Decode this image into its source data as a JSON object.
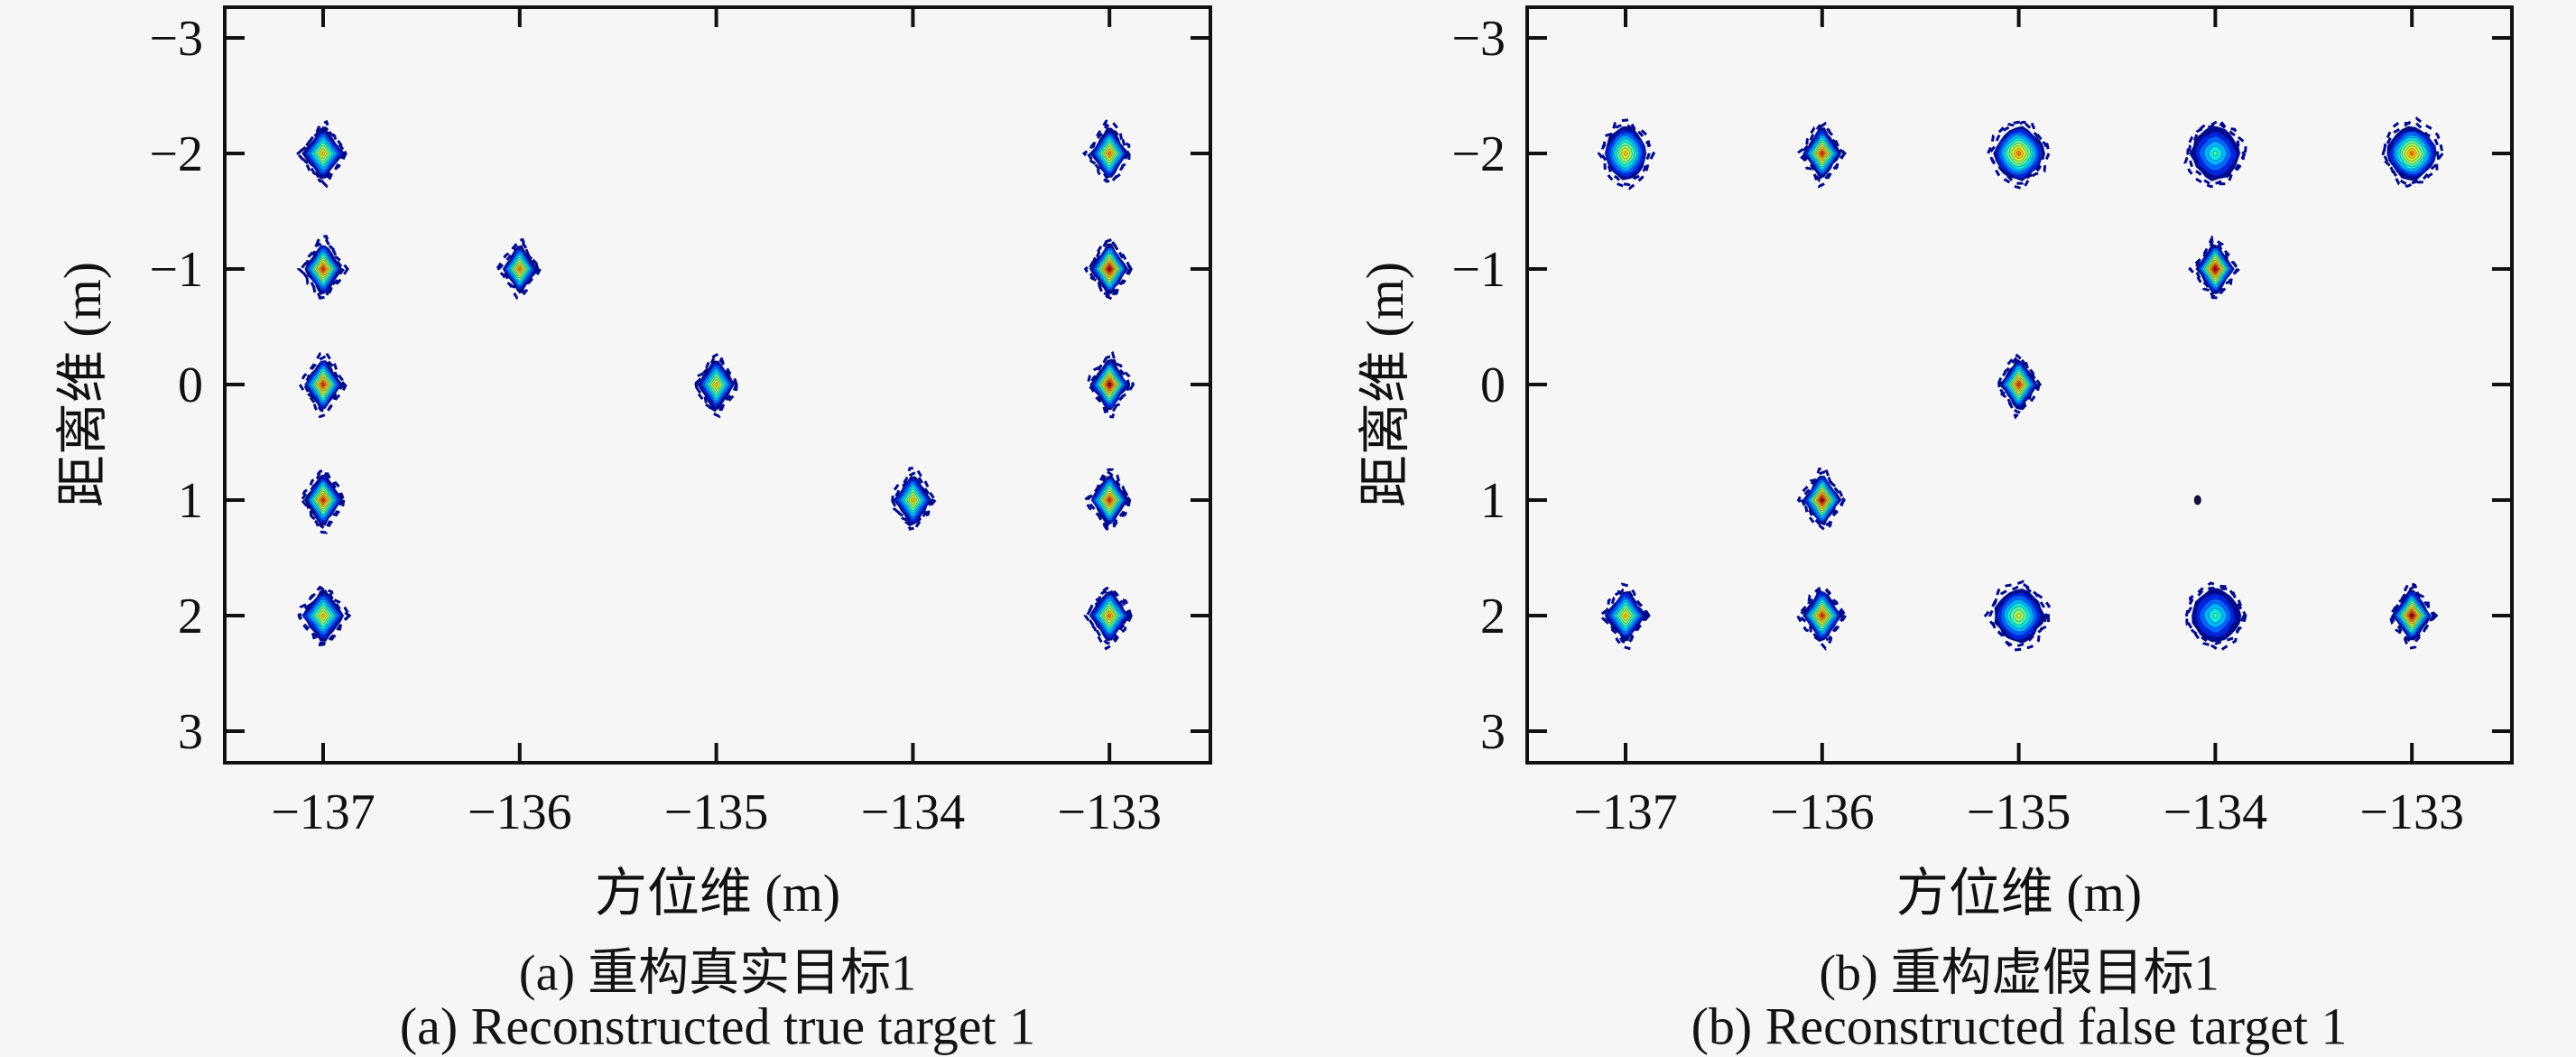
{
  "figure": {
    "background": "#f6f6f6",
    "axis_color": "#111111",
    "colormap": "jet",
    "panels": [
      {
        "index": "a",
        "xlabel": "方位维 (m)",
        "ylabel": "距离维 (m)",
        "caption_line1": "(a) 重构真实目标1",
        "caption_line2": "(a) Reconstructed true target 1"
      },
      {
        "index": "b",
        "xlabel": "方位维 (m)",
        "ylabel": "距离维 (m)",
        "caption_line1": "(b) 重构虚假目标1",
        "caption_line2": "(b) Reconstructed false target 1"
      }
    ]
  },
  "chart_data": [
    {
      "type": "scatter",
      "subtype": "filled-contour-blobs",
      "title": "(a) 重构真实目标1 / (a) Reconstructed true target 1",
      "xlabel": "方位维 (m)",
      "ylabel": "距离维 (m)",
      "xlim": [
        -137.5,
        -132.5
      ],
      "ylim": [
        -3.25,
        3.27
      ],
      "y_axis_direction": "reversed",
      "grid": false,
      "legend": "none",
      "x_tick_values": [
        -137,
        -136,
        -135,
        -134,
        -133
      ],
      "x_tick_labels": [
        "−137",
        "−136",
        "−135",
        "−134",
        "−133"
      ],
      "y_tick_values": [
        -3,
        -2,
        -1,
        0,
        1,
        2,
        3
      ],
      "y_tick_labels": [
        "−3",
        "−2",
        "−1",
        "0",
        "1",
        "2",
        "3"
      ],
      "points": [
        {
          "x": -137,
          "y": -2,
          "peak": "yellow",
          "shape": "diamond",
          "seed": 1,
          "sx": 1.1
        },
        {
          "x": -137,
          "y": -1,
          "peak": "red",
          "shape": "diamond",
          "seed": 2
        },
        {
          "x": -137,
          "y": 0,
          "peak": "red",
          "shape": "diamond",
          "seed": 3
        },
        {
          "x": -137,
          "y": 1,
          "peak": "red",
          "shape": "diamond",
          "seed": 4
        },
        {
          "x": -137,
          "y": 2,
          "peak": "yellow",
          "shape": "diamond",
          "seed": 5,
          "sx": 1.15
        },
        {
          "x": -136,
          "y": -1,
          "peak": "orange",
          "shape": "diamond",
          "seed": 6,
          "sx": 0.92,
          "sy": 0.92
        },
        {
          "x": -135,
          "y": 0,
          "peak": "yellow",
          "shape": "diamond",
          "seed": 7
        },
        {
          "x": -134,
          "y": 1,
          "peak": "yellow",
          "shape": "diamond",
          "seed": 8
        },
        {
          "x": -133,
          "y": -2,
          "peak": "orange",
          "shape": "diamond",
          "seed": 9
        },
        {
          "x": -133,
          "y": -1,
          "peak": "darkred",
          "shape": "diamond",
          "seed": 10
        },
        {
          "x": -133,
          "y": 0,
          "peak": "darkred",
          "shape": "diamond",
          "seed": 11
        },
        {
          "x": -133,
          "y": 1,
          "peak": "red",
          "shape": "diamond",
          "seed": 12
        },
        {
          "x": -133,
          "y": 2,
          "peak": "orange",
          "shape": "diamond",
          "seed": 13,
          "sx": 1.05
        }
      ]
    },
    {
      "type": "scatter",
      "subtype": "filled-contour-blobs",
      "title": "(b) 重构虚假目标1 / (b) Reconstructed false target 1",
      "xlabel": "方位维 (m)",
      "ylabel": "距离维 (m)",
      "xlim": [
        -137.5,
        -132.5
      ],
      "ylim": [
        -3.25,
        3.27
      ],
      "y_axis_direction": "reversed",
      "grid": false,
      "legend": "none",
      "x_tick_values": [
        -137,
        -136,
        -135,
        -134,
        -133
      ],
      "x_tick_labels": [
        "−137",
        "−136",
        "−135",
        "−134",
        "−133"
      ],
      "y_tick_values": [
        -3,
        -2,
        -1,
        0,
        1,
        2,
        3
      ],
      "y_tick_labels": [
        "−3",
        "−2",
        "−1",
        "0",
        "1",
        "2",
        "3"
      ],
      "points": [
        {
          "x": -137,
          "y": -2,
          "peak": "yellow",
          "shape": "hex",
          "seed": 21,
          "sx": 0.85
        },
        {
          "x": -136,
          "y": -2,
          "peak": "red",
          "shape": "diamond",
          "seed": 22
        },
        {
          "x": -135,
          "y": -2,
          "peak": "orange",
          "shape": "hex",
          "seed": 23
        },
        {
          "x": -134,
          "y": -2,
          "peak": "green",
          "shape": "hex",
          "seed": 24
        },
        {
          "x": -133,
          "y": -2,
          "peak": "orange",
          "shape": "hex",
          "seed": 25
        },
        {
          "x": -134,
          "y": -1,
          "peak": "darkred",
          "shape": "diamond",
          "seed": 26
        },
        {
          "x": -135,
          "y": 0,
          "peak": "red",
          "shape": "diamond",
          "seed": 27
        },
        {
          "x": -136,
          "y": 1,
          "peak": "darkred",
          "shape": "diamond",
          "seed": 28
        },
        {
          "x": -134.09,
          "y": 1,
          "peak": "dot",
          "shape": "dot",
          "seed": 29
        },
        {
          "x": -137,
          "y": 2,
          "peak": "yellow",
          "shape": "diamond",
          "seed": 30,
          "sx": 1.1
        },
        {
          "x": -136,
          "y": 2,
          "peak": "red",
          "shape": "diamond",
          "seed": 31,
          "sx": 1.05
        },
        {
          "x": -135,
          "y": 2,
          "peak": "yellowgreen",
          "shape": "hex",
          "seed": 32
        },
        {
          "x": -134,
          "y": 2,
          "peak": "green",
          "shape": "hex",
          "seed": 33
        },
        {
          "x": -133,
          "y": 2,
          "peak": "darkred",
          "shape": "diamond",
          "seed": 34,
          "sx": 1.05
        }
      ]
    }
  ]
}
